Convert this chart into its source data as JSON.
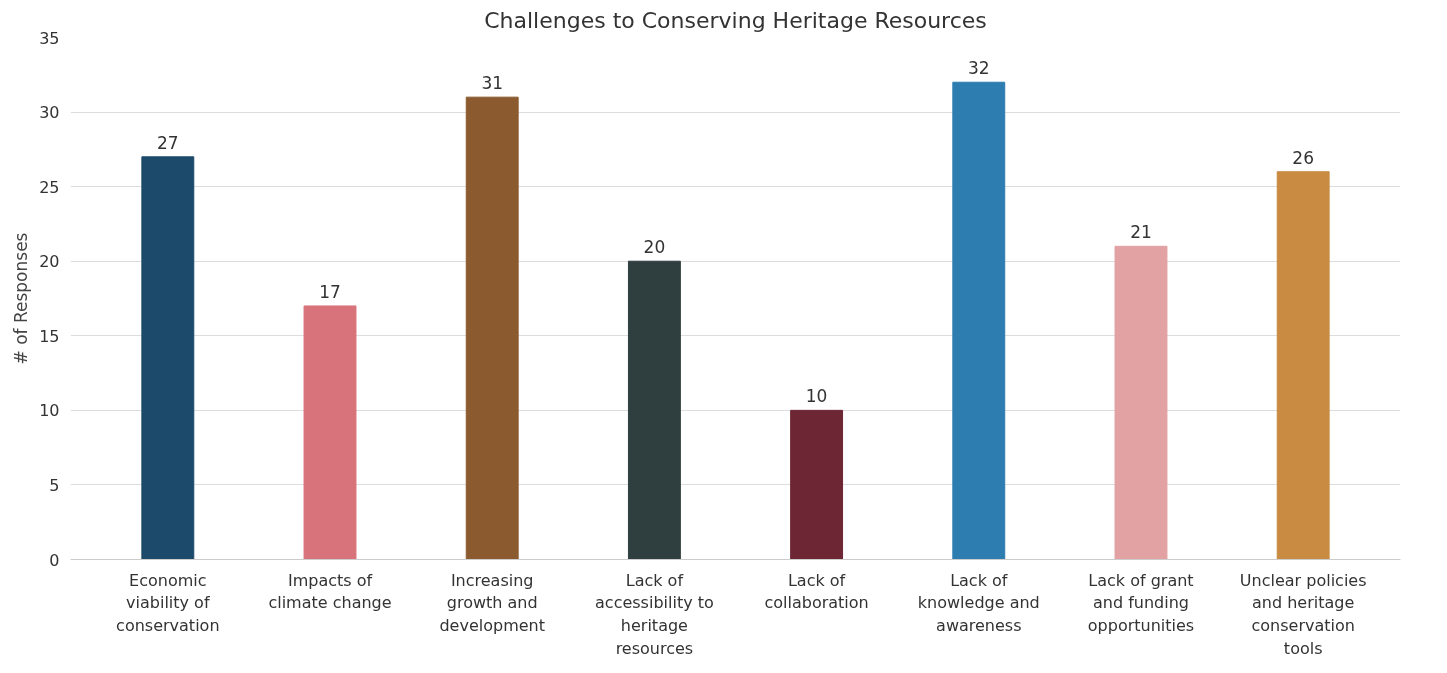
{
  "chart_data": {
    "type": "bar",
    "title": "Challenges to Conserving Heritage Resources",
    "ylabel": "# of Responses",
    "categories": [
      "Economic viability of conservation",
      "Impacts of climate change",
      "Increasing growth and development",
      "Lack of accessibility to heritage resources",
      "Lack of collaboration",
      "Lack of knowledge and awareness",
      "Lack of grant and funding opportunities",
      "Unclear policies and heritage conservation tools"
    ],
    "values": [
      27,
      17,
      31,
      20,
      10,
      32,
      21,
      26
    ],
    "colors": [
      "#1b4a6a",
      "#d8737b",
      "#8b5b2f",
      "#2f3e3e",
      "#6d2734",
      "#2e7db0",
      "#e2a1a3",
      "#c98b42"
    ],
    "ylim": [
      0,
      35
    ],
    "yticks": [
      0,
      5,
      10,
      15,
      20,
      25,
      30,
      35
    ],
    "grid": "y",
    "data_labels": true
  }
}
